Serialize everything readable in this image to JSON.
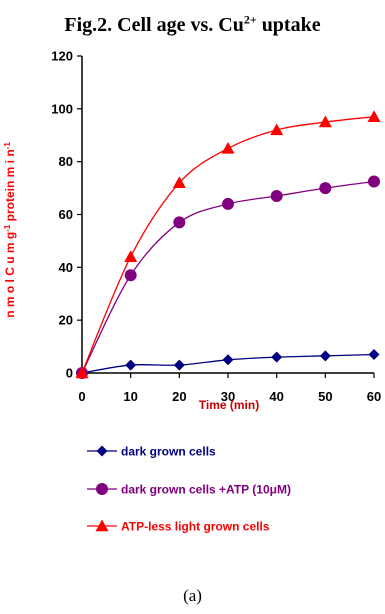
{
  "title": {
    "main": "Fig.2. Cell age vs. Cu",
    "sup": "2+",
    "tail": " uptake"
  },
  "caption": "(a)",
  "chart_data": {
    "type": "line",
    "xlabel": "Time (min)",
    "ylabel_parts": [
      "n m o l C u  m g",
      "-1",
      " protein  m i n",
      "-1"
    ],
    "x": [
      0,
      10,
      20,
      30,
      40,
      50,
      60
    ],
    "xlim": [
      0,
      60
    ],
    "ylim": [
      0,
      120
    ],
    "xticks": [
      "0",
      "10",
      "20",
      "30",
      "40",
      "50",
      "60"
    ],
    "yticks": [
      "0",
      "20",
      "40",
      "60",
      "80",
      "100",
      "120"
    ],
    "grid": false,
    "legend_position": "bottom",
    "series": [
      {
        "name": "dark grown cells",
        "marker": "diamond",
        "color": "#000080",
        "label_color": "#000080",
        "values": [
          0,
          3,
          3,
          5,
          6,
          6.5,
          7
        ]
      },
      {
        "name": "dark grown cells +ATP (10μM)",
        "marker": "circle",
        "color": "#800080",
        "label_color": "#800080",
        "values": [
          0,
          37,
          57,
          64,
          67,
          70,
          72.5
        ]
      },
      {
        "name": "ATP-less light grown cells",
        "marker": "triangle",
        "color": "#ff0000",
        "label_color": "#ff0000",
        "values": [
          0,
          44,
          72,
          85,
          92,
          95,
          97
        ]
      }
    ]
  }
}
